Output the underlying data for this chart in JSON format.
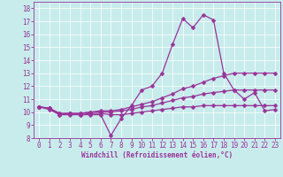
{
  "xlabel": "Windchill (Refroidissement éolien,°C)",
  "bg_color": "#c8ecec",
  "line_color": "#993399",
  "xlim": [
    -0.5,
    23.5
  ],
  "ylim": [
    8,
    18.5
  ],
  "xticks": [
    0,
    1,
    2,
    3,
    4,
    5,
    6,
    7,
    8,
    9,
    10,
    11,
    12,
    13,
    14,
    15,
    16,
    17,
    18,
    19,
    20,
    21,
    22,
    23
  ],
  "yticks": [
    8,
    9,
    10,
    11,
    12,
    13,
    14,
    15,
    16,
    17,
    18
  ],
  "series": [
    [
      10.4,
      10.3,
      9.8,
      9.8,
      9.8,
      9.8,
      9.8,
      8.2,
      9.5,
      10.5,
      11.7,
      12.0,
      13.0,
      15.2,
      17.2,
      16.5,
      17.5,
      17.1,
      13.0,
      11.7,
      11.0,
      11.5,
      10.1,
      10.2
    ],
    [
      10.4,
      10.2,
      9.8,
      9.9,
      9.8,
      9.9,
      9.9,
      9.8,
      9.8,
      9.9,
      10.0,
      10.1,
      10.2,
      10.3,
      10.4,
      10.4,
      10.5,
      10.5,
      10.5,
      10.5,
      10.5,
      10.5,
      10.5,
      10.5
    ],
    [
      10.4,
      10.3,
      9.9,
      9.9,
      9.9,
      10.0,
      10.0,
      10.0,
      10.1,
      10.2,
      10.4,
      10.5,
      10.7,
      10.9,
      11.1,
      11.2,
      11.4,
      11.5,
      11.6,
      11.7,
      11.7,
      11.7,
      11.7,
      11.7
    ],
    [
      10.4,
      10.3,
      9.9,
      9.9,
      9.9,
      10.0,
      10.1,
      10.1,
      10.2,
      10.4,
      10.6,
      10.8,
      11.1,
      11.4,
      11.8,
      12.0,
      12.3,
      12.6,
      12.8,
      13.0,
      13.0,
      13.0,
      13.0,
      13.0
    ]
  ],
  "marker_size": 2.5,
  "line_width": 0.9,
  "tick_fontsize": 5.5,
  "xlabel_fontsize": 5.5,
  "grid_color": "#ffffff",
  "grid_lw": 0.5
}
